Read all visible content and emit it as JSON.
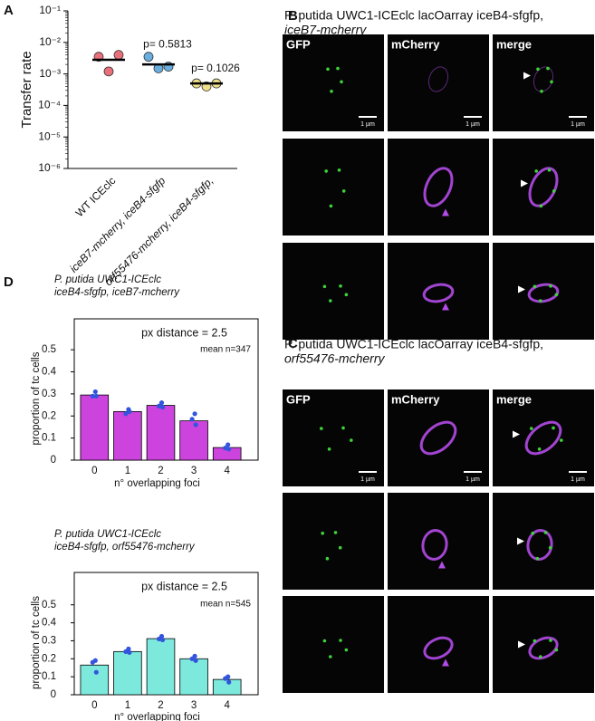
{
  "figure": {
    "labels": [
      "A",
      "B",
      "C",
      "D"
    ]
  },
  "panels": {
    "B": {
      "title": [
        "P. putida UWC1-ICEclc lacOarray iceB4-sfgfp,",
        "iceB7-mcherry"
      ],
      "columns": [
        "GFP",
        "mCherry",
        "merge"
      ],
      "scalebar": "1 µm"
    },
    "C": {
      "title": [
        "P. putida UWC1-ICEclc lacOarray iceB4-sfgfp,",
        "orf55476-mcherry"
      ],
      "columns": [
        "GFP",
        "mCherry",
        "merge"
      ],
      "scalebar": "1 µm"
    }
  },
  "chart_data": [
    {
      "type": "dotplot",
      "ylabel": "Transfer rate",
      "log_scale": true,
      "categories": [
        "WT ICEclc",
        "iceB7-mcherry, iceB4-sfgfp",
        "orf55476-mcherry, iceB4-sfgfp,"
      ],
      "groups": [
        {
          "values": [
            0.0035,
            0.0012,
            0.004
          ],
          "mean": 0.0028,
          "color": "#e8707a"
        },
        {
          "values": [
            0.0035,
            0.0015,
            0.0017
          ],
          "mean": 0.002,
          "color": "#6aaee0",
          "annotation": "p= 0.5813"
        },
        {
          "values": [
            0.0005,
            0.0004,
            0.0005
          ],
          "mean": 0.0005,
          "color": "#f0e08a",
          "annotation": "p= 0.1026"
        }
      ],
      "ylim": [
        1e-06,
        0.1
      ],
      "yticks": [
        {
          "value": 1e-06,
          "label": "10⁻⁶"
        },
        {
          "value": 1e-05,
          "label": "10⁻⁵"
        },
        {
          "value": 0.0001,
          "label": "10⁻⁴"
        },
        {
          "value": 0.001,
          "label": "10⁻³"
        },
        {
          "value": 0.01,
          "label": "10⁻²"
        },
        {
          "value": 0.1,
          "label": "10⁻¹"
        }
      ]
    },
    {
      "type": "bar",
      "title": [
        "P. putida UWC1-ICEclc",
        "iceB4-sfgfp, iceB7-mcherry"
      ],
      "annotation": "px distance = 2.5",
      "note": "mean n=347",
      "ylabel": "proportion of tc cells",
      "xlabel": "n° overlapping foci",
      "categories": [
        "0",
        "1",
        "2",
        "3",
        "4"
      ],
      "values": [
        0.295,
        0.22,
        0.248,
        0.178,
        0.057
      ],
      "color": "#cc44dd",
      "replicates": [
        [
          0.31,
          0.29,
          0.29
        ],
        [
          0.23,
          0.21,
          0.22
        ],
        [
          0.26,
          0.245,
          0.24
        ],
        [
          0.21,
          0.185,
          0.16
        ],
        [
          0.07,
          0.055,
          0.05
        ]
      ],
      "replicate_color": "#3355dd",
      "ylim": [
        0,
        0.64
      ],
      "yticks": [
        0,
        0.1,
        0.2,
        0.3,
        0.4,
        0.5
      ]
    },
    {
      "type": "bar",
      "title": [
        "P. putida UWC1-ICEclc",
        "iceB4-sfgfp, orf55476-mcherry"
      ],
      "annotation": "px distance = 2.5",
      "note": "mean n=545",
      "ylabel": "proportion of tc cells",
      "xlabel": "n° overlapping foci",
      "categories": [
        "0",
        "1",
        "2",
        "3",
        "4"
      ],
      "values": [
        0.165,
        0.24,
        0.312,
        0.2,
        0.085
      ],
      "color": "#7de8dc",
      "replicates": [
        [
          0.19,
          0.18,
          0.125
        ],
        [
          0.255,
          0.24,
          0.235
        ],
        [
          0.325,
          0.31,
          0.305
        ],
        [
          0.215,
          0.2,
          0.19
        ],
        [
          0.1,
          0.09,
          0.07
        ]
      ],
      "replicate_color": "#3355dd",
      "ylim": [
        0,
        0.68
      ],
      "yticks": [
        0,
        0.1,
        0.2,
        0.3,
        0.4,
        0.5
      ]
    }
  ]
}
